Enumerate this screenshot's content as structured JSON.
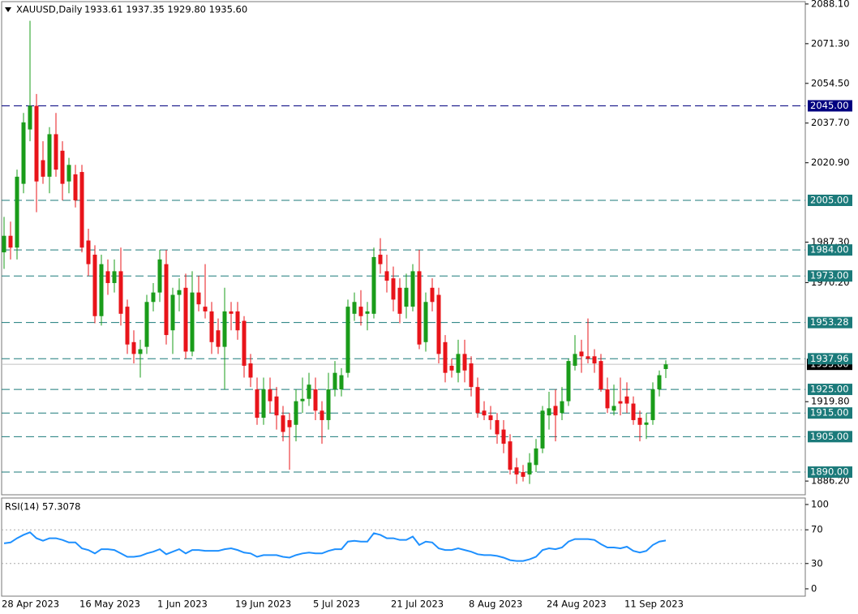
{
  "chart_data": {
    "type": "candlestick",
    "title": "XAUUSD,Daily",
    "ohlc_text": "1933.61 1937.35 1929.80 1935.60",
    "up_color": "#1a9c1a",
    "down_color": "#e8141a",
    "categories": [
      "28 Apr 2023",
      null,
      null,
      null,
      null,
      null,
      null,
      null,
      null,
      null,
      null,
      null,
      "16 May 2023",
      null,
      null,
      null,
      null,
      null,
      null,
      null,
      null,
      null,
      null,
      null,
      "1 Jun 2023",
      null,
      null,
      null,
      null,
      null,
      null,
      null,
      null,
      null,
      null,
      null,
      "19 Jun 2023",
      null,
      null,
      null,
      null,
      null,
      null,
      null,
      null,
      null,
      null,
      null,
      "5 Jul 2023",
      null,
      null,
      null,
      null,
      null,
      null,
      null,
      null,
      null,
      null,
      null,
      "21 Jul 2023",
      null,
      null,
      null,
      null,
      null,
      null,
      null,
      null,
      null,
      null,
      null,
      "8 Aug 2023",
      null,
      null,
      null,
      null,
      null,
      null,
      null,
      null,
      null,
      null,
      null,
      "24 Aug 2023",
      null,
      null,
      null,
      null,
      null,
      null,
      null,
      null,
      null,
      null,
      null,
      "11 Sep 2023",
      null,
      null,
      null,
      null,
      null,
      null
    ],
    "open": [
      1983,
      1990,
      1985,
      2012,
      2035,
      2045,
      2022,
      2015,
      2033,
      2026,
      2013,
      2016,
      2017,
      1988,
      1982,
      1956,
      1975,
      1970,
      1975,
      1960,
      1945,
      1940,
      1943,
      1962,
      1966,
      1978,
      1950,
      1965,
      1968,
      1941,
      1966,
      1960,
      1958,
      1950,
      1943,
      1958,
      1958,
      1954,
      1936,
      1925,
      1913,
      1925,
      1922,
      1914,
      1912,
      1910,
      1920,
      1921,
      1925,
      1916,
      1912,
      1925,
      1925,
      1932,
      1957,
      1960,
      1957,
      1957,
      1982,
      1975,
      1972,
      1968,
      1960,
      1960,
      1975,
      1945,
      1968,
      1965,
      1945,
      1935,
      1932,
      1940,
      1936,
      1926,
      1916,
      1914,
      1912,
      1908,
      1903,
      1892,
      1890,
      1889,
      1893,
      1900,
      1914,
      1918,
      1915,
      1920,
      1935,
      1941,
      1939,
      1939,
      1937,
      1925,
      1916,
      1920,
      1922,
      1919,
      1913,
      1910,
      1912,
      1925,
      1933.61
    ],
    "high": [
      1998,
      1996,
      2018,
      2042,
      2081,
      2050,
      2030,
      2036,
      2042,
      2030,
      2023,
      2020,
      2020,
      1993,
      1986,
      1982,
      1980,
      1980,
      1985,
      1963,
      1950,
      1946,
      1965,
      1970,
      1984,
      1984,
      1968,
      1972,
      1974,
      1975,
      1973,
      1978,
      1962,
      1955,
      1968,
      1962,
      1962,
      1956,
      1940,
      1930,
      1930,
      1930,
      1926,
      1918,
      1915,
      1925,
      1930,
      1932,
      1930,
      1920,
      1932,
      1937,
      1934,
      1963,
      1966,
      1967,
      1962,
      1985,
      1989,
      1982,
      1977,
      1972,
      1974,
      1978,
      1984,
      1966,
      1972,
      1968,
      1948,
      1938,
      1946,
      1946,
      1939,
      1930,
      1920,
      1918,
      1915,
      1912,
      1906,
      1896,
      1893,
      1898,
      1904,
      1918,
      1924,
      1925,
      1926,
      1938,
      1948,
      1946,
      1955,
      1942,
      1940,
      1930,
      1927,
      1930,
      1928,
      1922,
      1916,
      1915,
      1928,
      1933,
      1937.35
    ],
    "low": [
      1976,
      1980,
      1980,
      2008,
      2030,
      2000,
      2012,
      2008,
      2015,
      2005,
      2008,
      2002,
      1983,
      1973,
      1953,
      1952,
      1965,
      1966,
      1952,
      1940,
      1936,
      1930,
      1940,
      1958,
      1962,
      1944,
      1940,
      1958,
      1938,
      1939,
      1958,
      1955,
      1940,
      1940,
      1925,
      1950,
      1946,
      1930,
      1926,
      1910,
      1910,
      1915,
      1908,
      1903,
      1891,
      1903,
      1915,
      1918,
      1912,
      1902,
      1908,
      1922,
      1922,
      1930,
      1954,
      1952,
      1950,
      1955,
      1974,
      1966,
      1958,
      1953,
      1955,
      1958,
      1942,
      1941,
      1958,
      1936,
      1928,
      1930,
      1928,
      1928,
      1922,
      1913,
      1912,
      1908,
      1902,
      1898,
      1889,
      1885,
      1886,
      1885,
      1890,
      1898,
      1908,
      1903,
      1912,
      1918,
      1933,
      1932,
      1936,
      1932,
      1924,
      1915,
      1914,
      1914,
      1915,
      1910,
      1903,
      1904,
      1910,
      1922,
      1929.8
    ],
    "close": [
      1990,
      1985,
      2015,
      2038,
      2045,
      2013,
      2015,
      2033,
      2018,
      2012,
      2020,
      2005,
      1985,
      1978,
      1956,
      1978,
      1970,
      1975,
      1957,
      1944,
      1940,
      1942,
      1962,
      1966,
      1980,
      1948,
      1965,
      1967,
      1941,
      1966,
      1961,
      1958,
      1945,
      1943,
      1958,
      1957,
      1950,
      1935,
      1930,
      1913,
      1925,
      1920,
      1914,
      1907,
      1909,
      1920,
      1921,
      1927,
      1916,
      1912,
      1925,
      1932,
      1931,
      1960,
      1962,
      1956,
      1958,
      1981,
      1978,
      1971,
      1963,
      1957,
      1968,
      1975,
      1944,
      1962,
      1962,
      1940,
      1932,
      1933,
      1940,
      1933,
      1926,
      1915,
      1914,
      1912,
      1906,
      1902,
      1891,
      1889,
      1888,
      1894,
      1900,
      1916,
      1917,
      1914,
      1920,
      1937,
      1940,
      1939,
      1938,
      1936,
      1925,
      1917,
      1918,
      1919,
      1919,
      1912,
      1910,
      1911,
      1925,
      1931,
      1935.6
    ],
    "ylim": [
      1880.4,
      2089.1
    ],
    "yticks": [
      {
        "value": 2088.1,
        "label": "2088.10"
      },
      {
        "value": 2071.3,
        "label": "2071.30"
      },
      {
        "value": 2054.5,
        "label": "2054.50"
      },
      {
        "value": 2037.7,
        "label": "2037.70"
      },
      {
        "value": 2020.9,
        "label": "2020.90"
      },
      {
        "value": 1987.3,
        "label": "1987.30"
      },
      {
        "value": 1970.2,
        "label": "1970.20"
      },
      {
        "value": 1919.8,
        "label": "1919.80"
      },
      {
        "value": 1886.2,
        "label": "1886.20"
      }
    ],
    "levels": [
      {
        "value": 2045,
        "label": "2045.00",
        "color": "#000080"
      },
      {
        "value": 2005,
        "label": "2005.00",
        "color": "#1b7a7a"
      },
      {
        "value": 1984,
        "label": "1984.00",
        "color": "#1b7a7a"
      },
      {
        "value": 1973,
        "label": "1973.00",
        "color": "#1b7a7a"
      },
      {
        "value": 1953.28,
        "label": "1953.28",
        "color": "#1b7a7a"
      },
      {
        "value": 1937.96,
        "label": "1937.96",
        "color": "#1b7a7a"
      },
      {
        "value": 1925,
        "label": "1925.00",
        "color": "#1b7a7a"
      },
      {
        "value": 1915,
        "label": "1915.00",
        "color": "#1b7a7a"
      },
      {
        "value": 1905,
        "label": "1905.00",
        "color": "#1b7a7a"
      },
      {
        "value": 1890,
        "label": "1890.00",
        "color": "#1b7a7a"
      }
    ],
    "current_price": {
      "value": 1935.6,
      "label": "1935.60"
    },
    "rsi": {
      "title": "RSI(14) 57.3078",
      "color": "#1e90ff",
      "values": [
        54,
        55,
        60,
        64,
        67,
        60,
        57,
        60,
        60,
        58,
        55,
        55,
        48,
        46,
        42,
        47,
        47,
        46,
        42,
        38,
        38,
        39,
        42,
        44,
        47,
        41,
        44,
        47,
        42,
        46,
        46,
        45,
        45,
        45,
        47,
        48,
        46,
        43,
        42,
        38,
        40,
        40,
        40,
        38,
        37,
        40,
        42,
        43,
        42,
        42,
        45,
        47,
        47,
        56,
        57,
        56,
        56,
        66,
        64,
        60,
        60,
        58,
        58,
        62,
        52,
        56,
        55,
        48,
        46,
        46,
        48,
        46,
        44,
        41,
        40,
        40,
        39,
        37,
        34,
        33,
        33,
        35,
        38,
        46,
        48,
        47,
        49,
        56,
        59,
        59,
        59,
        58,
        53,
        49,
        49,
        48,
        50,
        45,
        43,
        45,
        52,
        56,
        57.3078
      ],
      "ylim": [
        -8.7,
        107.7
      ],
      "yticks": [
        100,
        70,
        30,
        0
      ],
      "dashed": [
        70,
        30
      ]
    }
  }
}
